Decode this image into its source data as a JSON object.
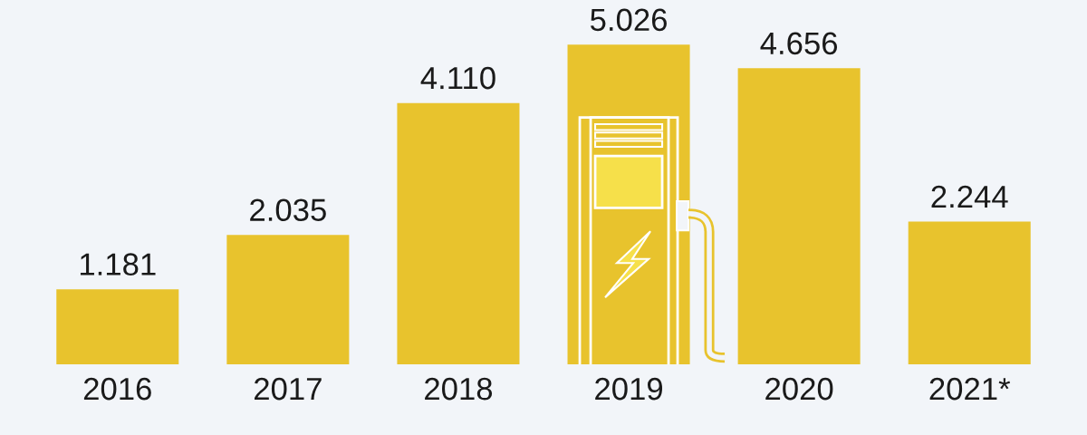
{
  "chart_data": {
    "type": "bar",
    "categories": [
      "2016",
      "2017",
      "2018",
      "2019",
      "2020",
      "2021*"
    ],
    "values": [
      1181,
      2035,
      4110,
      5026,
      4656,
      2244
    ],
    "value_labels": [
      "1.181",
      "2.035",
      "4.110",
      "5.026",
      "4.656",
      "2.244"
    ],
    "color": "#e8c32d",
    "tick_labels": "x"
  }
}
